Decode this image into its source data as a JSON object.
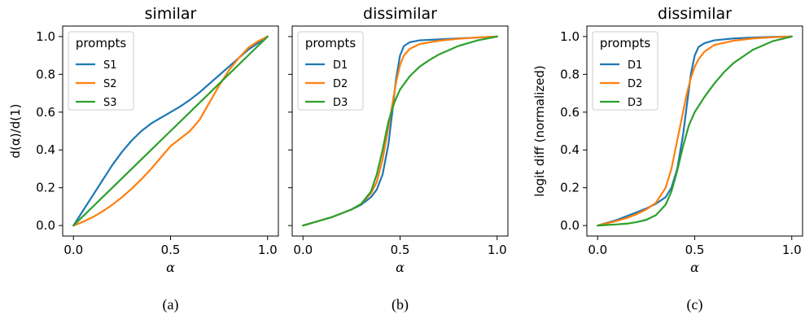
{
  "chart_data": [
    {
      "type": "line",
      "title": "similar",
      "caption": "(a)",
      "xlabel": "α",
      "ylabel": "d(α)/d(1)",
      "xlim": [
        0,
        1
      ],
      "ylim": [
        0,
        1
      ],
      "xticks": [
        "0.0",
        "0.5",
        "1.0"
      ],
      "yticks": [
        "0.0",
        "0.2",
        "0.4",
        "0.6",
        "0.8",
        "1.0"
      ],
      "legend_title": "prompts",
      "legend_position": "top-left",
      "series": [
        {
          "name": "S1",
          "color": "#1f77b4",
          "x": [
            0,
            0.05,
            0.1,
            0.15,
            0.2,
            0.25,
            0.3,
            0.35,
            0.4,
            0.45,
            0.5,
            0.55,
            0.6,
            0.65,
            0.7,
            0.75,
            0.8,
            0.85,
            0.9,
            0.95,
            1.0
          ],
          "y": [
            0,
            0.08,
            0.16,
            0.24,
            0.32,
            0.39,
            0.45,
            0.5,
            0.54,
            0.57,
            0.6,
            0.63,
            0.665,
            0.705,
            0.75,
            0.795,
            0.84,
            0.885,
            0.93,
            0.965,
            1.0
          ]
        },
        {
          "name": "S2",
          "color": "#ff7f0e",
          "x": [
            0,
            0.05,
            0.1,
            0.15,
            0.2,
            0.25,
            0.3,
            0.35,
            0.4,
            0.45,
            0.5,
            0.55,
            0.6,
            0.65,
            0.7,
            0.75,
            0.8,
            0.85,
            0.9,
            0.95,
            1.0
          ],
          "y": [
            0,
            0.02,
            0.045,
            0.075,
            0.11,
            0.15,
            0.195,
            0.245,
            0.3,
            0.36,
            0.42,
            0.46,
            0.5,
            0.56,
            0.65,
            0.74,
            0.82,
            0.885,
            0.94,
            0.975,
            1.0
          ]
        },
        {
          "name": "S3",
          "color": "#2ca02c",
          "x": [
            0,
            0.1,
            0.2,
            0.3,
            0.4,
            0.5,
            0.6,
            0.7,
            0.8,
            0.9,
            1.0
          ],
          "y": [
            0,
            0.1,
            0.2,
            0.3,
            0.4,
            0.5,
            0.6,
            0.7,
            0.8,
            0.9,
            1.0
          ]
        }
      ]
    },
    {
      "type": "line",
      "title": "dissimilar",
      "caption": "(b)",
      "xlabel": "α",
      "ylabel": "",
      "xlim": [
        0,
        1
      ],
      "ylim": [
        0,
        1
      ],
      "xticks": [
        "0.0",
        "0.5",
        "1.0"
      ],
      "yticks": [],
      "legend_title": "prompts",
      "legend_position": "top-left",
      "series": [
        {
          "name": "D1",
          "color": "#1f77b4",
          "x": [
            0,
            0.05,
            0.1,
            0.15,
            0.2,
            0.25,
            0.3,
            0.35,
            0.38,
            0.41,
            0.44,
            0.46,
            0.48,
            0.5,
            0.52,
            0.55,
            0.6,
            0.7,
            0.8,
            0.9,
            1.0
          ],
          "y": [
            0,
            0.015,
            0.03,
            0.045,
            0.065,
            0.085,
            0.11,
            0.15,
            0.19,
            0.27,
            0.43,
            0.6,
            0.78,
            0.9,
            0.95,
            0.97,
            0.98,
            0.985,
            0.99,
            0.995,
            1.0
          ]
        },
        {
          "name": "D2",
          "color": "#ff7f0e",
          "x": [
            0,
            0.05,
            0.1,
            0.15,
            0.2,
            0.25,
            0.3,
            0.35,
            0.38,
            0.41,
            0.44,
            0.46,
            0.48,
            0.5,
            0.52,
            0.55,
            0.6,
            0.7,
            0.8,
            0.9,
            1.0
          ],
          "y": [
            0,
            0.015,
            0.03,
            0.045,
            0.065,
            0.085,
            0.115,
            0.17,
            0.23,
            0.35,
            0.52,
            0.64,
            0.76,
            0.85,
            0.9,
            0.935,
            0.96,
            0.978,
            0.988,
            0.995,
            1.0
          ]
        },
        {
          "name": "D3",
          "color": "#2ca02c",
          "x": [
            0,
            0.05,
            0.1,
            0.15,
            0.2,
            0.25,
            0.3,
            0.35,
            0.38,
            0.41,
            0.44,
            0.47,
            0.5,
            0.55,
            0.6,
            0.65,
            0.7,
            0.8,
            0.9,
            1.0
          ],
          "y": [
            0,
            0.015,
            0.03,
            0.045,
            0.065,
            0.085,
            0.115,
            0.18,
            0.27,
            0.4,
            0.55,
            0.65,
            0.72,
            0.79,
            0.84,
            0.875,
            0.905,
            0.95,
            0.98,
            1.0
          ]
        }
      ]
    },
    {
      "type": "line",
      "title": "dissimilar",
      "caption": "(c)",
      "xlabel": "α",
      "ylabel": "logit diff (normalized)",
      "xlim": [
        0,
        1
      ],
      "ylim": [
        0,
        1
      ],
      "xticks": [
        "0.0",
        "0.5",
        "1.0"
      ],
      "yticks": [
        "0.0",
        "0.2",
        "0.4",
        "0.6",
        "0.8",
        "1.0"
      ],
      "legend_title": "prompts",
      "legend_position": "top-left",
      "series": [
        {
          "name": "D1",
          "color": "#1f77b4",
          "x": [
            0,
            0.05,
            0.1,
            0.15,
            0.2,
            0.25,
            0.3,
            0.35,
            0.38,
            0.41,
            0.44,
            0.46,
            0.48,
            0.5,
            0.52,
            0.55,
            0.6,
            0.7,
            0.8,
            0.9,
            1.0
          ],
          "y": [
            0,
            0.015,
            0.03,
            0.05,
            0.07,
            0.09,
            0.115,
            0.15,
            0.2,
            0.3,
            0.48,
            0.64,
            0.8,
            0.9,
            0.945,
            0.965,
            0.98,
            0.99,
            0.995,
            0.998,
            1.0
          ]
        },
        {
          "name": "D2",
          "color": "#ff7f0e",
          "x": [
            0,
            0.05,
            0.1,
            0.15,
            0.2,
            0.25,
            0.3,
            0.35,
            0.38,
            0.41,
            0.44,
            0.46,
            0.48,
            0.5,
            0.52,
            0.55,
            0.6,
            0.7,
            0.8,
            0.9,
            1.0
          ],
          "y": [
            0,
            0.012,
            0.025,
            0.04,
            0.06,
            0.085,
            0.12,
            0.2,
            0.3,
            0.45,
            0.6,
            0.7,
            0.78,
            0.84,
            0.88,
            0.92,
            0.955,
            0.978,
            0.99,
            0.996,
            1.0
          ]
        },
        {
          "name": "D3",
          "color": "#2ca02c",
          "x": [
            0,
            0.05,
            0.1,
            0.15,
            0.2,
            0.25,
            0.3,
            0.35,
            0.38,
            0.41,
            0.44,
            0.47,
            0.5,
            0.55,
            0.6,
            0.65,
            0.7,
            0.8,
            0.9,
            1.0
          ],
          "y": [
            0,
            0.003,
            0.006,
            0.01,
            0.018,
            0.03,
            0.055,
            0.11,
            0.18,
            0.29,
            0.42,
            0.53,
            0.6,
            0.68,
            0.75,
            0.81,
            0.86,
            0.93,
            0.975,
            1.0
          ]
        }
      ]
    }
  ]
}
